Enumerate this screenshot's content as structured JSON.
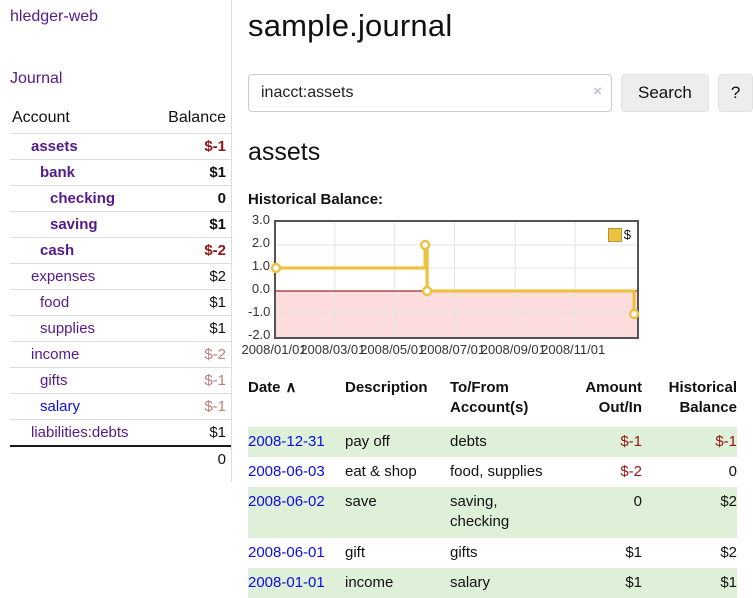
{
  "sidebar": {
    "brand": "hledger-web",
    "nav_journal": "Journal",
    "accounts_header": {
      "account": "Account",
      "balance": "Balance"
    },
    "accounts": [
      {
        "name": "assets",
        "balance": "$-1"
      },
      {
        "name": "bank",
        "balance": "$1"
      },
      {
        "name": "checking",
        "balance": "0"
      },
      {
        "name": "saving",
        "balance": "$1"
      },
      {
        "name": "cash",
        "balance": "$-2"
      },
      {
        "name": "expenses",
        "balance": "$2"
      },
      {
        "name": "food",
        "balance": "$1"
      },
      {
        "name": "supplies",
        "balance": "$1"
      },
      {
        "name": "income",
        "balance": "$-2"
      },
      {
        "name": "gifts",
        "balance": "$-1"
      },
      {
        "name": "salary",
        "balance": "$-1"
      },
      {
        "name": "liabilities:debts",
        "balance": "$1"
      }
    ],
    "total": "0"
  },
  "header": {
    "title": "sample.journal"
  },
  "search": {
    "value": "inacct:assets",
    "clear_icon": "×",
    "button_label": "Search",
    "help_label": "?"
  },
  "account_page": {
    "heading": "assets"
  },
  "chart_data": {
    "type": "line",
    "style": "step",
    "title": "Historical Balance:",
    "x": [
      "2008-01-01",
      "2008-06-01",
      "2008-06-03",
      "2008-12-31"
    ],
    "series": [
      {
        "name": "$",
        "values": [
          1,
          2,
          0,
          -1
        ]
      }
    ],
    "legend": [
      {
        "label": "$",
        "color": "#edc240"
      }
    ],
    "legend_position": "top-right",
    "grid": true,
    "ylim": [
      -2,
      3
    ],
    "y_ticks": [
      "3.0",
      "2.0",
      "1.0",
      "0.0",
      "-1.0",
      "-2.0"
    ],
    "x_ticks": [
      "2008/01/01",
      "2008/03/01",
      "2008/05/01",
      "2008/07/01",
      "2008/09/01",
      "2008/11/01"
    ],
    "x_range_days": 368,
    "colors": {
      "line": "#edc240",
      "marker_fill": "#ffffff",
      "negative_area": "#fcdcdc",
      "zero_line": "#9c2a2a",
      "grid": "#e4e4e4",
      "border": "#545454"
    }
  },
  "register": {
    "columns": {
      "date": "Date",
      "description": "Description",
      "accounts": "To/From Account(s)",
      "amount": "Amount Out/In",
      "balance": "Historical Balance"
    },
    "sort_icon": "∧",
    "rows": [
      {
        "date": "2008-12-31",
        "description": "pay off",
        "accounts": "debts",
        "amount": "$-1",
        "balance": "$-1"
      },
      {
        "date": "2008-06-03",
        "description": "eat & shop",
        "accounts": "food, supplies",
        "amount": "$-2",
        "balance": "0"
      },
      {
        "date": "2008-06-02",
        "description": "save",
        "accounts": "saving, checking",
        "amount": "0",
        "balance": "$2"
      },
      {
        "date": "2008-06-01",
        "description": "gift",
        "accounts": "gifts",
        "amount": "$1",
        "balance": "$2"
      },
      {
        "date": "2008-01-01",
        "description": "income",
        "accounts": "salary",
        "amount": "$1",
        "balance": "$1"
      }
    ]
  }
}
